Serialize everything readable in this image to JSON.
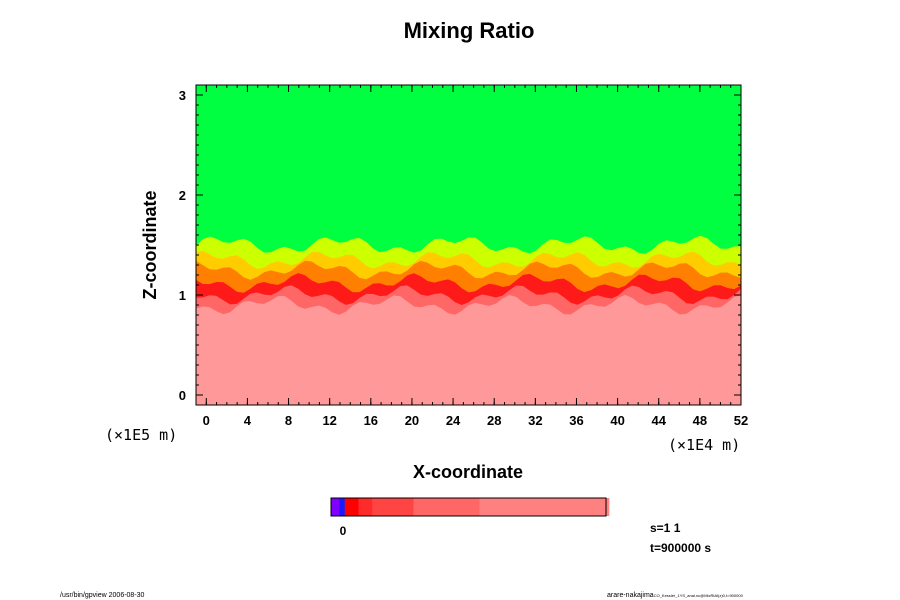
{
  "chart_data": {
    "type": "heatmap",
    "title": "Mixing Ratio",
    "xlabel": "X-coordinate",
    "ylabel": "Z-coordinate",
    "x_unit": "(×1E4 m)",
    "y_unit": "(×1E5 m)",
    "xlim": [
      -1,
      52
    ],
    "ylim": [
      -0.1,
      3.1
    ],
    "x_ticks": [
      0,
      4,
      8,
      12,
      16,
      20,
      24,
      28,
      32,
      36,
      40,
      44,
      48,
      52
    ],
    "y_ticks": [
      0,
      1,
      2,
      3
    ],
    "layers": [
      {
        "z_top": 3.1,
        "z_bottom": 1.5,
        "color": "#00ff40"
      },
      {
        "z_top": 1.5,
        "z_bottom": 1.35,
        "color": "#ccff00"
      },
      {
        "z_top": 1.35,
        "z_bottom": 1.25,
        "color": "#ffcc00"
      },
      {
        "z_top": 1.25,
        "z_bottom": 1.12,
        "color": "#ff7f00"
      },
      {
        "z_top": 1.12,
        "z_bottom": 1.0,
        "color": "#ff1a1a"
      },
      {
        "z_top": 1.0,
        "z_bottom": 0.9,
        "color": "#ff6666"
      },
      {
        "z_top": 0.9,
        "z_bottom": -0.1,
        "color": "#ff9999"
      }
    ],
    "colorbar": {
      "label": "0",
      "colors": [
        "#7f00ff",
        "#1a1aff",
        "#ff0000",
        "#ff2a2a",
        "#ff4444",
        "#ff6666",
        "#ff8080",
        "#ff9999"
      ],
      "fractions": [
        0.03,
        0.02,
        0.05,
        0.05,
        0.15,
        0.24,
        0.47
      ]
    },
    "grid": false
  },
  "annotations": {
    "s_label": "s=1 1",
    "t_label": "t=900000 s"
  },
  "footer": {
    "left": "/usr/bin/gpview 2006-08-30",
    "right": "arare-nakajima",
    "right_small": "CO_Kessler_1YS_anal.nc@MixRtAl(z)0,t=900000"
  }
}
